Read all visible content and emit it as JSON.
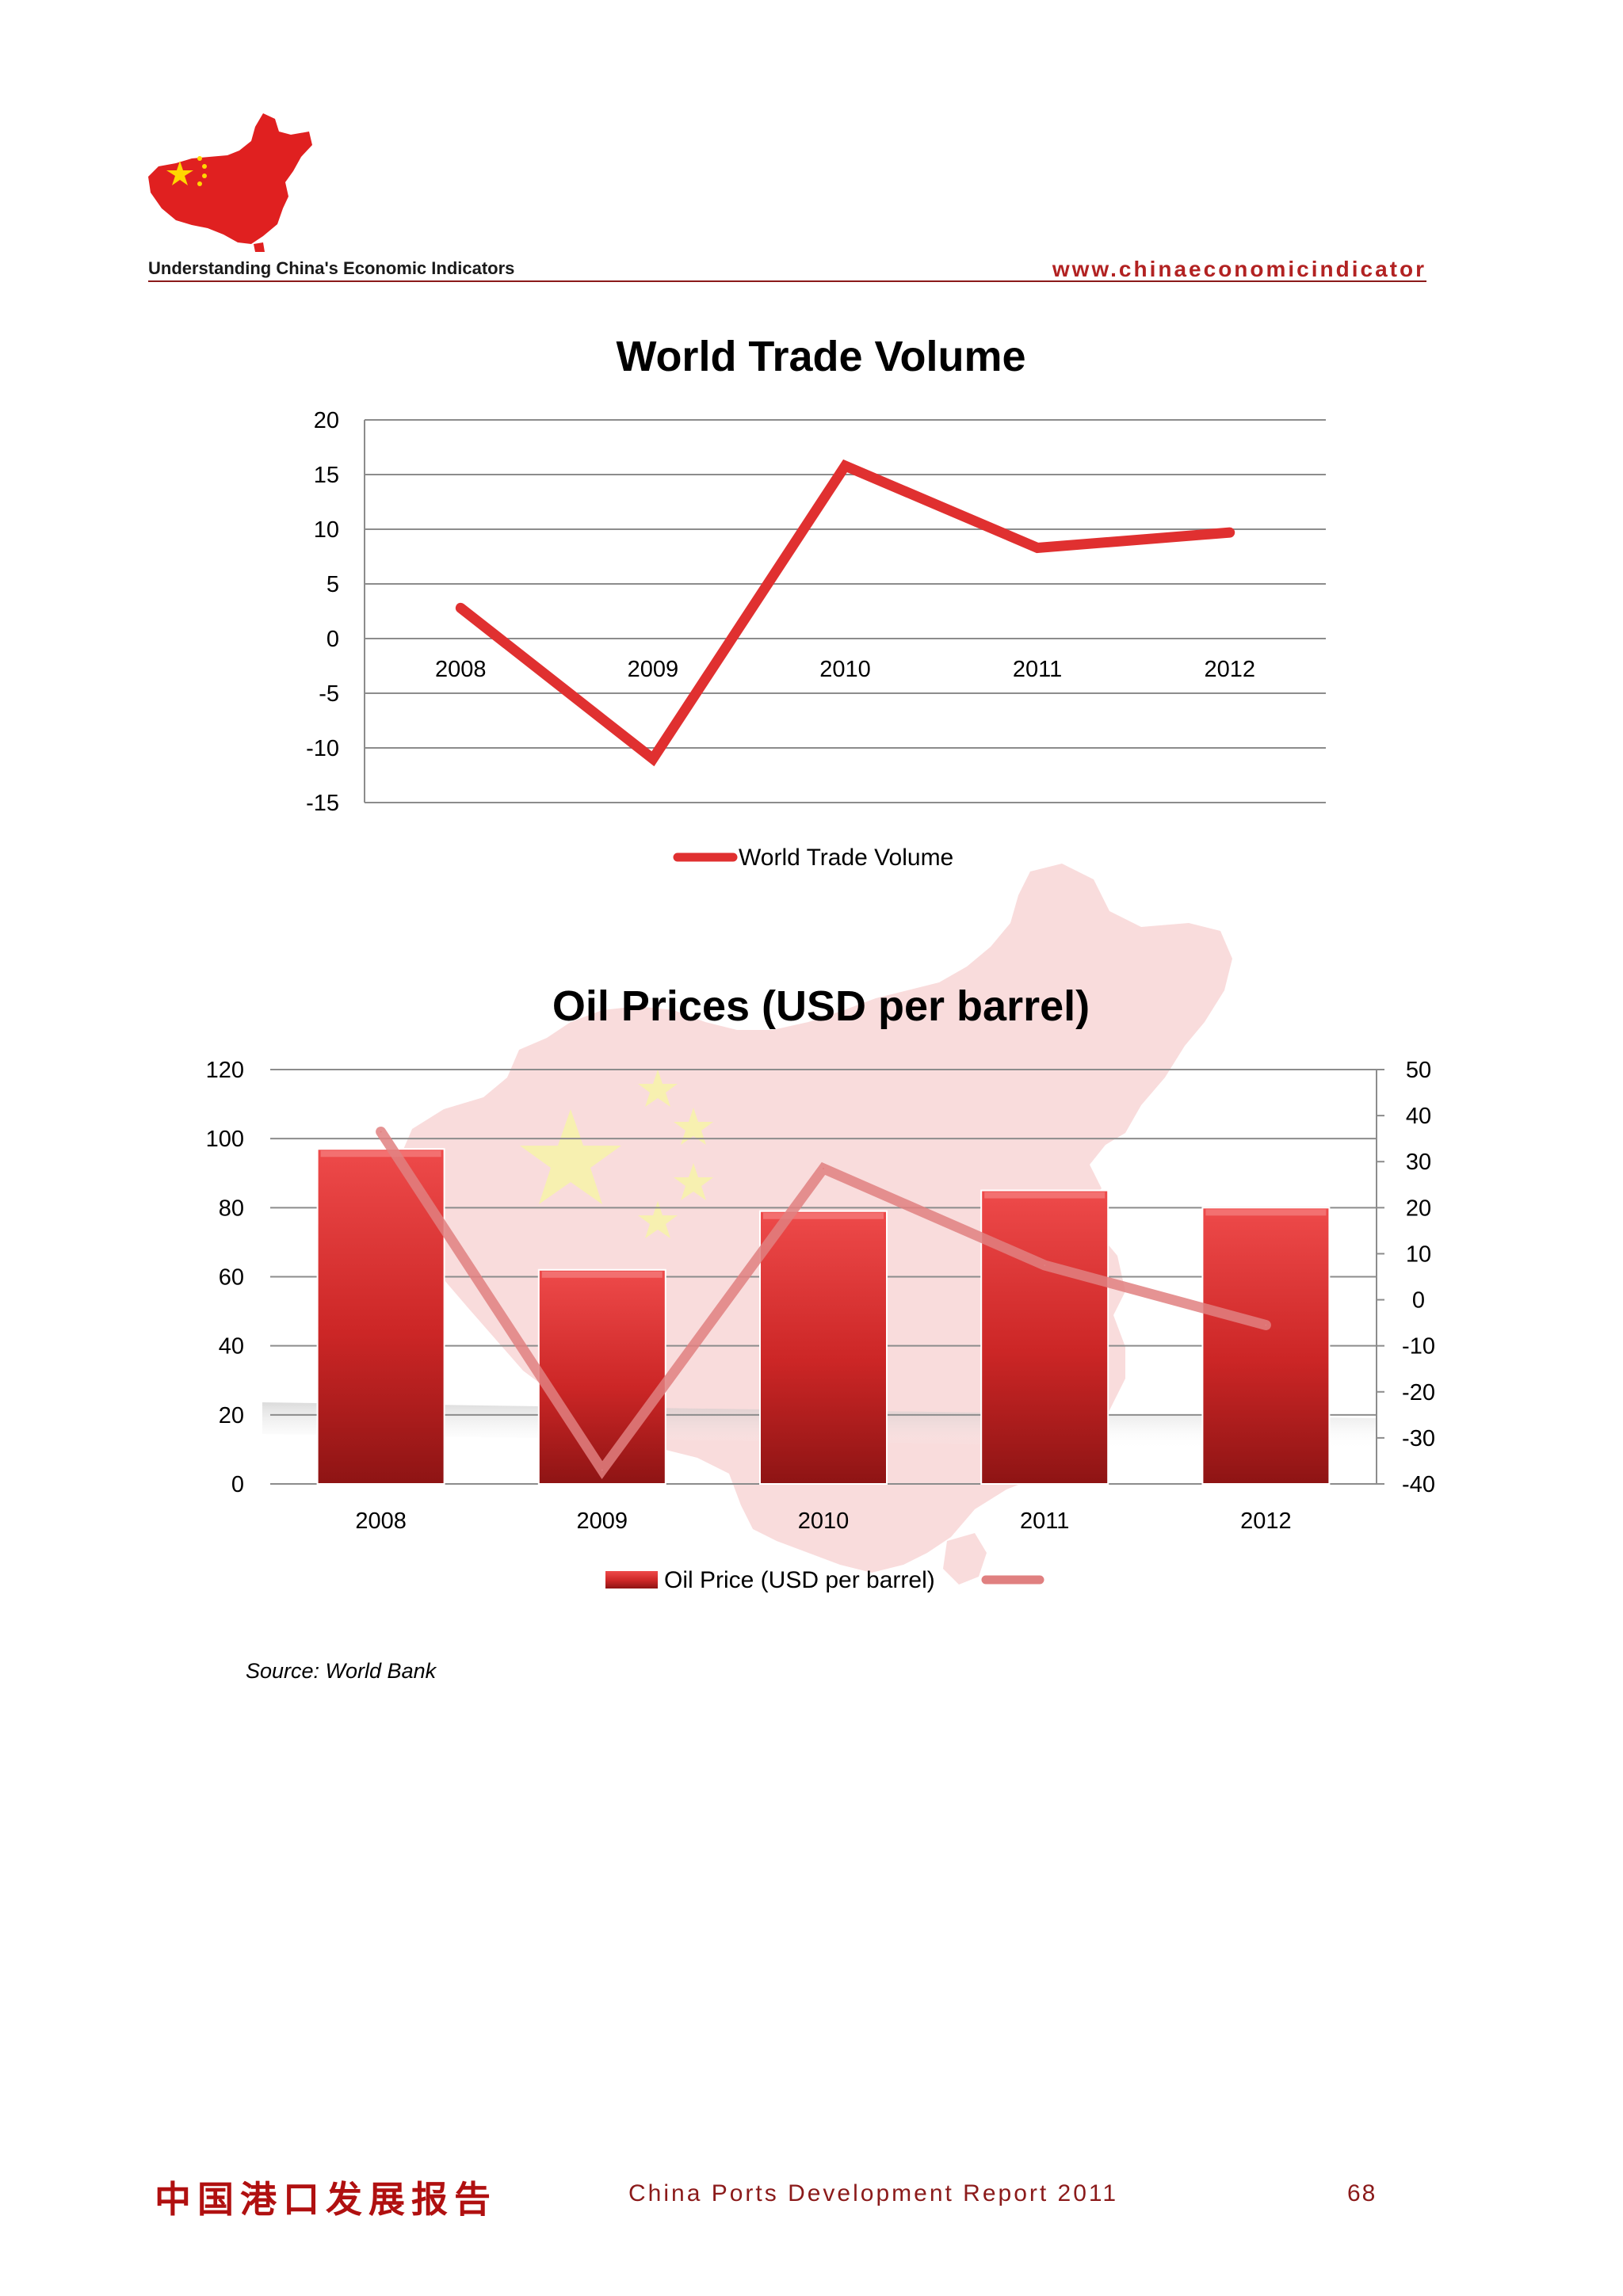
{
  "header": {
    "title": "Understanding China's Economic Indicators",
    "url": "www.chinaeconomicindicator"
  },
  "colors": {
    "accent": "#b22222",
    "line_red": "#e03030",
    "bar_red": "#d42a2a",
    "faded_line": "#e08080",
    "map_pink": "#f8d6d6"
  },
  "icons": {
    "logo": "china-map-flag-icon"
  },
  "chart_data": [
    {
      "type": "line",
      "title": "World Trade Volume",
      "categories": [
        "2008",
        "2009",
        "2010",
        "2011",
        "2012"
      ],
      "series": [
        {
          "name": "World Trade Volume",
          "values": [
            2.8,
            -11,
            15.8,
            8.3,
            9.7
          ]
        }
      ],
      "ylim": [
        -15,
        20
      ],
      "yticks": [
        "20",
        "15",
        "10",
        "5",
        "0",
        "-5",
        "-10",
        "-15"
      ],
      "grid": true,
      "legend": "bottom"
    },
    {
      "type": "bar",
      "title": "Oil Prices (USD per barrel)",
      "categories": [
        "2008",
        "2009",
        "2010",
        "2011",
        "2012"
      ],
      "series": [
        {
          "name": "Oil Price (USD per barrel)",
          "type": "bar",
          "axis": "left",
          "values": [
            97,
            62,
            79,
            85,
            80
          ]
        },
        {
          "type": "line",
          "axis": "right",
          "values": [
            36.5,
            -37,
            28.5,
            7.5,
            -5.5
          ]
        }
      ],
      "ylim": [
        0,
        120
      ],
      "y2lim": [
        -40,
        50
      ],
      "yticks": [
        "120",
        "100",
        "80",
        "60",
        "40",
        "20",
        "0"
      ],
      "y2ticks": [
        "50",
        "40",
        "30",
        "20",
        "10",
        "0",
        "-10",
        "-20",
        "-30",
        "-40"
      ],
      "grid": true,
      "legend": "bottom"
    }
  ],
  "source": "Source: World Bank",
  "footer": {
    "cn_title": "中国港口发展报告",
    "en_title": "China Ports Development Report 2011",
    "page": "68"
  }
}
